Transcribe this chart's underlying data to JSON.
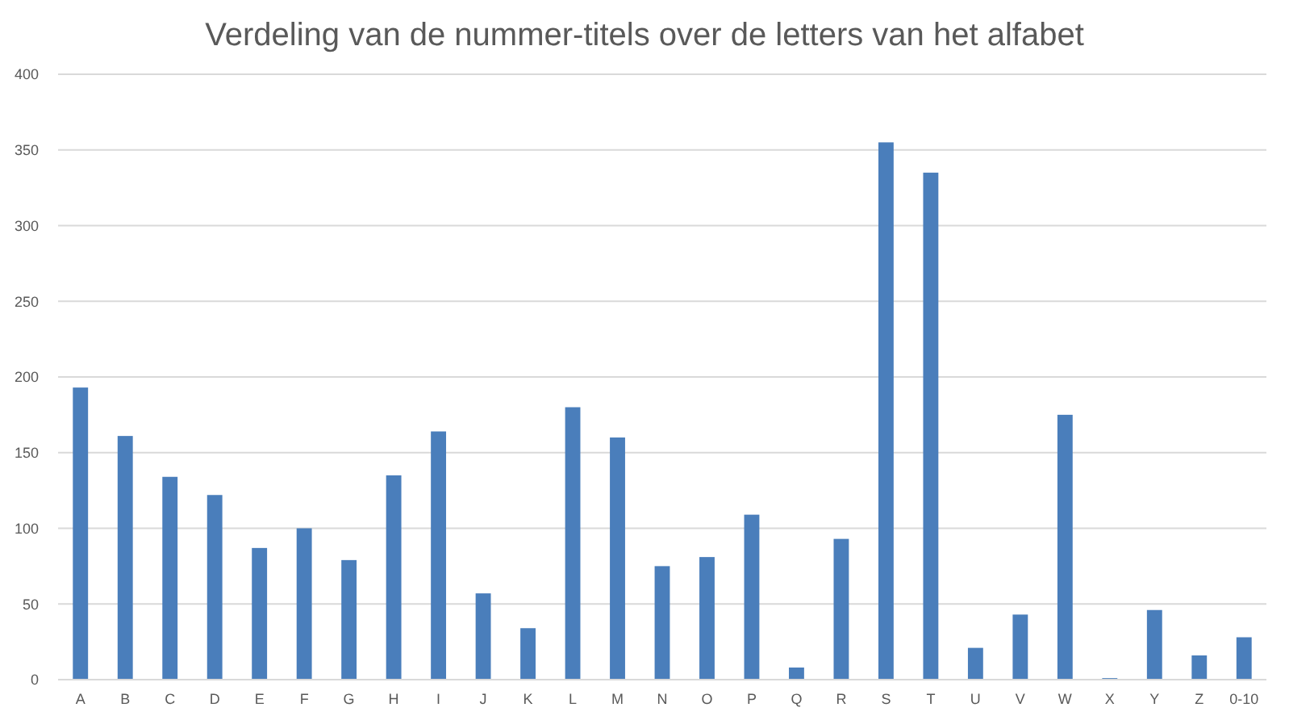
{
  "chart_data": {
    "type": "bar",
    "title": "Verdeling van de nummer-titels over de letters van het alfabet",
    "categories": [
      "A",
      "B",
      "C",
      "D",
      "E",
      "F",
      "G",
      "H",
      "I",
      "J",
      "K",
      "L",
      "M",
      "N",
      "O",
      "P",
      "Q",
      "R",
      "S",
      "T",
      "U",
      "V",
      "W",
      "X",
      "Y",
      "Z",
      "0-10"
    ],
    "values": [
      193,
      161,
      134,
      122,
      87,
      100,
      79,
      135,
      164,
      57,
      34,
      180,
      160,
      75,
      81,
      109,
      8,
      93,
      355,
      335,
      21,
      43,
      175,
      1,
      46,
      16,
      28
    ],
    "color": "#4a7ebb",
    "ylim": [
      0,
      400
    ],
    "yticks": [
      0,
      50,
      100,
      150,
      200,
      250,
      300,
      350,
      400
    ],
    "grid": "y"
  }
}
